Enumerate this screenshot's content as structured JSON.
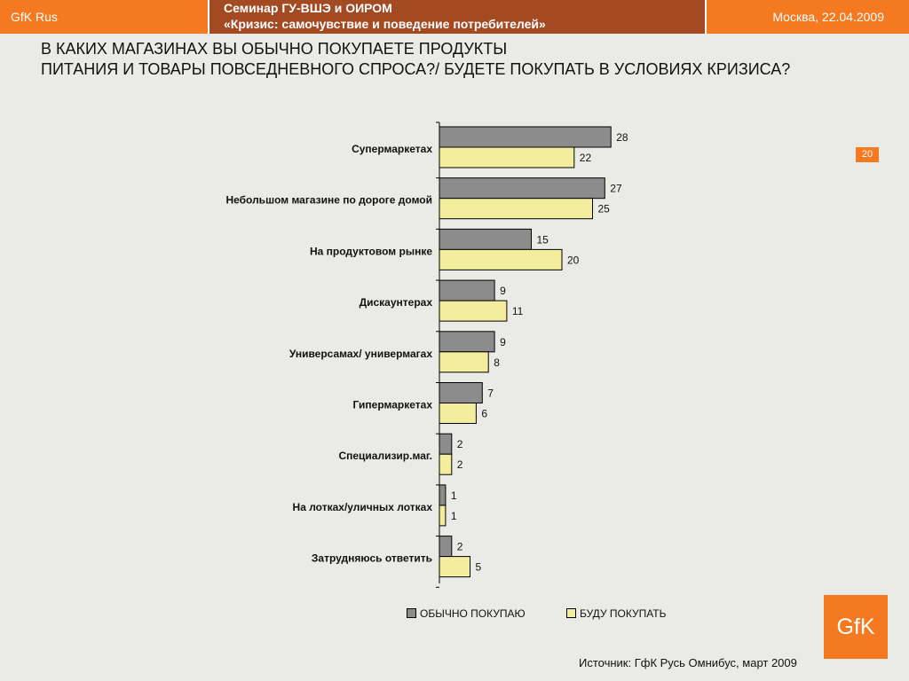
{
  "header": {
    "brand": "GfK Rus",
    "seminar_line1": "Семинар ГУ-ВШЭ и ОИРОМ",
    "seminar_line2": "«Кризис: самочувствие и поведение потребителей»",
    "city_date": "Москва, 22.04.2009"
  },
  "slide": {
    "title_line1": "В КАКИХ МАГАЗИНАХ ВЫ ОБЫЧНО ПОКУПАЕТЕ ПРОДУКТЫ",
    "title_line2": "ПИТАНИЯ И ТОВАРЫ ПОВСЕДНЕВНОГО СПРОСА?/ БУДЕТЕ ПОКУПАТЬ В УСЛОВИЯХ КРИЗИСА?",
    "page_number": "20",
    "source": "Источник: ГфК Русь Омнибус, март 2009",
    "logo_text": "GfK"
  },
  "colors": {
    "series1": "#8c8c8c",
    "series2": "#f2ee9e",
    "brand_orange": "#f47920",
    "seminar_bg": "#a44a22"
  },
  "chart_data": {
    "type": "bar",
    "orientation": "horizontal",
    "categories": [
      "Супермаркетах",
      "Небольшом магазине по дороге домой",
      "На продуктовом рынке",
      "Дискаунтерах",
      "Универсамах/ универмагах",
      "Гипермаркетах",
      "Специализир.маг.",
      "На лотках/уличных лотках",
      "Затрудняюсь ответить"
    ],
    "series": [
      {
        "name": "ОБЫЧНО ПОКУПАЮ",
        "values": [
          28,
          27,
          15,
          9,
          9,
          7,
          2,
          1,
          2
        ]
      },
      {
        "name": "БУДУ ПОКУПАТЬ",
        "values": [
          22,
          25,
          20,
          11,
          8,
          6,
          2,
          1,
          5
        ]
      }
    ],
    "xlim": [
      0,
      30
    ],
    "grid": false,
    "legend_position": "bottom"
  }
}
